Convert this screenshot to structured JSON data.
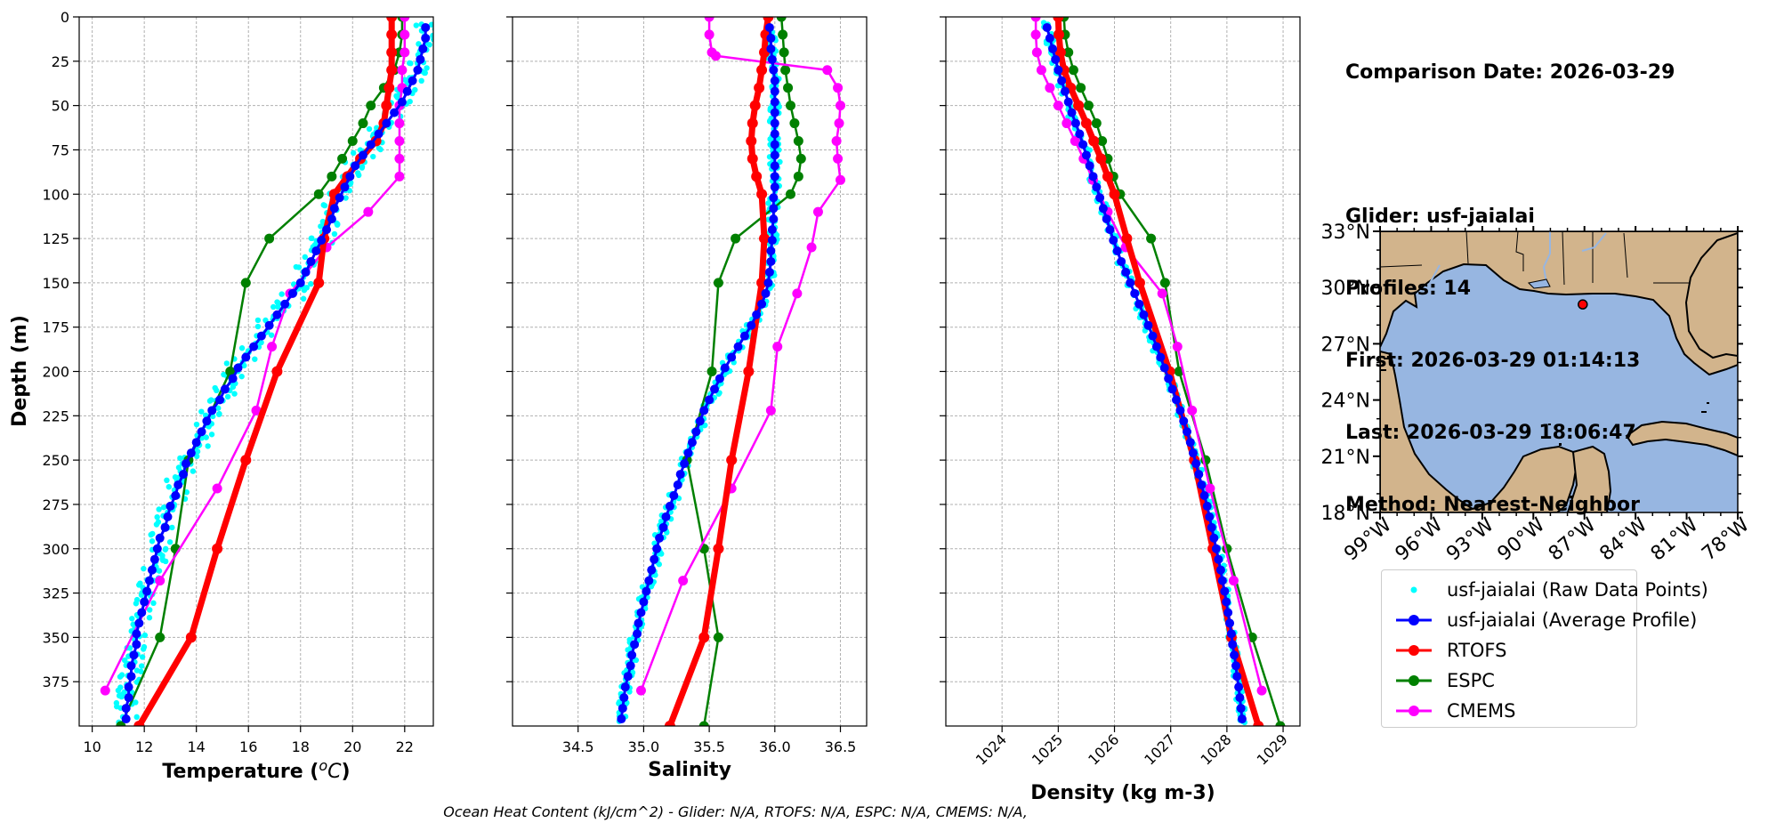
{
  "info": {
    "comparison_date": "Comparison Date: 2026-03-29",
    "glider": "Glider: usf-jaialai",
    "profiles": "Profiles: 14",
    "first": "First: 2026-03-29 01:14:13",
    "last": "Last: 2026-03-29 18:06:47",
    "method": "Method: Nearest-Neighbor"
  },
  "footer": "Ocean Heat Content (kJ/cm^2) - Glider: N/A,  RTOFS: N/A,  ESPC: N/A,  CMEMS: N/A,",
  "colors": {
    "raw": "#00ffff",
    "average": "#0000ff",
    "rtofs": "#ff0000",
    "espc": "#008000",
    "cmems": "#ff00ff",
    "ocean": "#97b6e1",
    "land": "#d2b48c",
    "grid": "#b0b0b0"
  },
  "legend": [
    {
      "label": "usf-jaialai (Raw Data Points)",
      "color": "#00ffff",
      "style": "points"
    },
    {
      "label": "usf-jaialai (Average Profile)",
      "color": "#0000ff",
      "style": "line-marker"
    },
    {
      "label": "RTOFS",
      "color": "#ff0000",
      "style": "line-marker"
    },
    {
      "label": "ESPC",
      "color": "#008000",
      "style": "line-marker"
    },
    {
      "label": "CMEMS",
      "color": "#ff00ff",
      "style": "line-marker"
    }
  ],
  "chart_data": [
    {
      "type": "line",
      "xlabel": "Temperature (",
      "xlabel_unit": "oC",
      "ylabel": "Depth (m)",
      "xlim": [
        9.5,
        23.1
      ],
      "ylim": [
        400,
        0
      ],
      "xticks": [
        10,
        12,
        14,
        16,
        18,
        20,
        22
      ],
      "yticks": [
        0,
        25,
        50,
        75,
        100,
        125,
        150,
        175,
        200,
        225,
        250,
        275,
        300,
        325,
        350,
        375
      ],
      "grid": true,
      "series": [
        {
          "name": "usf-jaialai (Average Profile)",
          "key": "average",
          "depth": [
            6,
            12,
            18,
            24,
            30,
            36,
            42,
            48,
            54,
            60,
            66,
            72,
            78,
            84,
            90,
            96,
            102,
            108,
            114,
            120,
            126,
            132,
            138,
            144,
            150,
            156,
            162,
            168,
            174,
            180,
            186,
            192,
            198,
            204,
            210,
            216,
            222,
            228,
            234,
            240,
            246,
            252,
            258,
            264,
            270,
            276,
            282,
            288,
            294,
            300,
            306,
            312,
            318,
            324,
            330,
            336,
            342,
            348,
            354,
            360,
            366,
            372,
            378,
            384,
            390,
            396
          ],
          "x": [
            22.8,
            22.8,
            22.7,
            22.6,
            22.5,
            22.3,
            22.1,
            21.9,
            21.6,
            21.3,
            21.0,
            20.7,
            20.4,
            20.1,
            19.9,
            19.7,
            19.5,
            19.3,
            19.2,
            19.0,
            18.8,
            18.6,
            18.4,
            18.2,
            18.0,
            17.7,
            17.4,
            17.1,
            16.8,
            16.5,
            16.2,
            15.9,
            15.6,
            15.4,
            15.1,
            14.9,
            14.6,
            14.4,
            14.2,
            14.0,
            13.8,
            13.6,
            13.5,
            13.3,
            13.2,
            13.0,
            12.9,
            12.8,
            12.6,
            12.5,
            12.4,
            12.3,
            12.2,
            12.1,
            12.0,
            11.9,
            11.8,
            11.7,
            11.7,
            11.6,
            11.5,
            11.5,
            11.4,
            11.4,
            11.3,
            11.3
          ]
        },
        {
          "name": "RTOFS",
          "key": "rtofs",
          "depth": [
            0,
            10,
            20,
            30,
            40,
            50,
            60,
            70,
            80,
            90,
            100,
            125,
            150,
            200,
            250,
            300,
            350,
            400
          ],
          "x": [
            21.5,
            21.5,
            21.5,
            21.5,
            21.4,
            21.3,
            21.2,
            20.9,
            20.3,
            19.8,
            19.3,
            18.9,
            18.7,
            17.1,
            15.9,
            14.8,
            13.8,
            11.8
          ]
        },
        {
          "name": "ESPC",
          "key": "espc",
          "depth": [
            0,
            10,
            20,
            30,
            40,
            50,
            60,
            70,
            80,
            90,
            100,
            125,
            150,
            200,
            250,
            300,
            350,
            400
          ],
          "x": [
            21.9,
            21.9,
            21.8,
            21.6,
            21.2,
            20.7,
            20.4,
            20.0,
            19.6,
            19.2,
            18.7,
            16.8,
            15.9,
            15.3,
            13.7,
            13.2,
            12.6,
            11.1
          ]
        },
        {
          "name": "CMEMS",
          "key": "cmems",
          "depth": [
            0,
            10,
            20,
            30,
            40,
            50,
            60,
            70,
            80,
            90,
            110,
            130,
            156,
            186,
            222,
            266,
            318,
            380
          ],
          "x": [
            22.0,
            22.0,
            22.0,
            21.9,
            21.9,
            21.8,
            21.8,
            21.8,
            21.8,
            21.8,
            20.6,
            19.0,
            17.6,
            16.9,
            16.3,
            14.8,
            12.6,
            10.5
          ]
        }
      ]
    },
    {
      "type": "line",
      "xlabel": "Salinity",
      "xlim": [
        34.0,
        36.7
      ],
      "ylim": [
        400,
        0
      ],
      "xticks": [
        34.5,
        35.0,
        35.5,
        36.0,
        36.5
      ],
      "grid": true,
      "series": [
        {
          "name": "usf-jaialai (Average Profile)",
          "key": "average",
          "depth": [
            6,
            12,
            18,
            24,
            30,
            36,
            42,
            48,
            54,
            60,
            66,
            72,
            78,
            84,
            90,
            96,
            102,
            108,
            114,
            120,
            126,
            132,
            138,
            144,
            150,
            156,
            162,
            168,
            174,
            180,
            186,
            192,
            198,
            204,
            210,
            216,
            222,
            228,
            234,
            240,
            246,
            252,
            258,
            264,
            270,
            276,
            282,
            288,
            294,
            300,
            306,
            312,
            318,
            324,
            330,
            336,
            342,
            348,
            354,
            360,
            366,
            372,
            378,
            384,
            390,
            396
          ],
          "x": [
            35.96,
            35.97,
            35.97,
            35.98,
            35.99,
            36.0,
            36.0,
            36.0,
            36.0,
            36.0,
            36.0,
            36.0,
            36.0,
            36.0,
            36.0,
            36.0,
            35.99,
            35.99,
            35.99,
            35.98,
            35.98,
            35.97,
            35.97,
            35.96,
            35.95,
            35.93,
            35.9,
            35.86,
            35.82,
            35.77,
            35.72,
            35.67,
            35.62,
            35.58,
            35.54,
            35.5,
            35.46,
            35.43,
            35.4,
            35.37,
            35.34,
            35.31,
            35.28,
            35.26,
            35.23,
            35.2,
            35.17,
            35.15,
            35.12,
            35.1,
            35.08,
            35.06,
            35.04,
            35.02,
            35.0,
            34.98,
            34.96,
            34.95,
            34.93,
            34.91,
            34.9,
            34.88,
            34.86,
            34.85,
            34.84,
            34.83
          ]
        },
        {
          "name": "RTOFS",
          "key": "rtofs",
          "depth": [
            0,
            10,
            20,
            30,
            40,
            50,
            60,
            70,
            80,
            90,
            100,
            125,
            150,
            200,
            250,
            300,
            350,
            400
          ],
          "x": [
            35.95,
            35.93,
            35.92,
            35.9,
            35.88,
            35.85,
            35.83,
            35.82,
            35.83,
            35.86,
            35.9,
            35.92,
            35.9,
            35.8,
            35.67,
            35.57,
            35.46,
            35.2
          ]
        },
        {
          "name": "ESPC",
          "key": "espc",
          "depth": [
            0,
            10,
            20,
            30,
            40,
            50,
            60,
            70,
            80,
            90,
            100,
            125,
            150,
            200,
            250,
            300,
            350,
            400
          ],
          "x": [
            36.05,
            36.06,
            36.07,
            36.08,
            36.1,
            36.12,
            36.15,
            36.18,
            36.2,
            36.18,
            36.12,
            35.7,
            35.57,
            35.52,
            35.33,
            35.46,
            35.57,
            35.46
          ]
        },
        {
          "name": "CMEMS",
          "key": "cmems",
          "depth": [
            0,
            10,
            20,
            22,
            30,
            40,
            50,
            60,
            70,
            80,
            92,
            110,
            130,
            156,
            186,
            222,
            266,
            318,
            380
          ],
          "x": [
            35.5,
            35.5,
            35.52,
            35.55,
            36.4,
            36.48,
            36.5,
            36.49,
            36.47,
            36.48,
            36.5,
            36.33,
            36.28,
            36.17,
            36.02,
            35.97,
            35.67,
            35.3,
            34.98
          ]
        }
      ]
    },
    {
      "type": "line",
      "xlabel": "Density (kg m-3)",
      "xlim": [
        1023.0,
        1029.3
      ],
      "ylim": [
        400,
        0
      ],
      "xticks": [
        1024,
        1025,
        1026,
        1027,
        1028,
        1029
      ],
      "grid": true,
      "series": [
        {
          "name": "usf-jaialai (Average Profile)",
          "key": "average",
          "depth": [
            6,
            12,
            18,
            24,
            30,
            36,
            42,
            48,
            54,
            60,
            66,
            72,
            78,
            84,
            90,
            96,
            102,
            108,
            114,
            120,
            126,
            132,
            138,
            144,
            150,
            156,
            162,
            168,
            174,
            180,
            186,
            192,
            198,
            204,
            210,
            216,
            222,
            228,
            234,
            240,
            246,
            252,
            258,
            264,
            270,
            276,
            282,
            288,
            294,
            300,
            306,
            312,
            318,
            324,
            330,
            336,
            342,
            348,
            354,
            360,
            366,
            372,
            378,
            384,
            390,
            396
          ],
          "x": [
            1024.8,
            1024.85,
            1024.9,
            1024.95,
            1025.0,
            1025.06,
            1025.12,
            1025.18,
            1025.24,
            1025.31,
            1025.38,
            1025.44,
            1025.5,
            1025.56,
            1025.62,
            1025.68,
            1025.74,
            1025.8,
            1025.86,
            1025.92,
            1025.98,
            1026.05,
            1026.12,
            1026.2,
            1026.28,
            1026.36,
            1026.44,
            1026.52,
            1026.6,
            1026.68,
            1026.75,
            1026.82,
            1026.89,
            1026.96,
            1027.03,
            1027.1,
            1027.17,
            1027.23,
            1027.29,
            1027.35,
            1027.4,
            1027.45,
            1027.5,
            1027.55,
            1027.6,
            1027.65,
            1027.69,
            1027.73,
            1027.77,
            1027.81,
            1027.85,
            1027.89,
            1027.92,
            1027.96,
            1027.99,
            1028.02,
            1028.05,
            1028.08,
            1028.1,
            1028.13,
            1028.16,
            1028.18,
            1028.21,
            1028.23,
            1028.25,
            1028.27
          ]
        },
        {
          "name": "RTOFS",
          "key": "rtofs",
          "depth": [
            0,
            10,
            20,
            30,
            40,
            50,
            60,
            70,
            80,
            90,
            100,
            125,
            150,
            200,
            250,
            300,
            350,
            400
          ],
          "x": [
            1025.0,
            1025.01,
            1025.04,
            1025.1,
            1025.22,
            1025.36,
            1025.5,
            1025.63,
            1025.76,
            1025.88,
            1026.0,
            1026.22,
            1026.45,
            1026.98,
            1027.42,
            1027.75,
            1028.08,
            1028.56
          ]
        },
        {
          "name": "ESPC",
          "key": "espc",
          "depth": [
            0,
            10,
            20,
            30,
            40,
            50,
            60,
            70,
            80,
            90,
            100,
            125,
            150,
            200,
            250,
            300,
            350,
            400
          ],
          "x": [
            1025.1,
            1025.12,
            1025.18,
            1025.27,
            1025.4,
            1025.54,
            1025.68,
            1025.78,
            1025.88,
            1025.98,
            1026.1,
            1026.65,
            1026.9,
            1027.15,
            1027.62,
            1028.0,
            1028.45,
            1028.95
          ]
        },
        {
          "name": "CMEMS",
          "key": "cmems",
          "depth": [
            0,
            10,
            20,
            30,
            40,
            50,
            60,
            70,
            80,
            92,
            110,
            130,
            156,
            186,
            222,
            266,
            318,
            380
          ],
          "x": [
            1024.6,
            1024.6,
            1024.62,
            1024.7,
            1024.85,
            1025.0,
            1025.15,
            1025.3,
            1025.45,
            1025.62,
            1025.88,
            1026.2,
            1026.85,
            1027.12,
            1027.38,
            1027.7,
            1028.12,
            1028.62
          ]
        }
      ]
    },
    {
      "type": "map",
      "lat_labels": [
        "33°N",
        "30°N",
        "27°N",
        "24°N",
        "21°N",
        "18°N"
      ],
      "lon_labels": [
        "99°W",
        "96°W",
        "93°W",
        "90°W",
        "87°W",
        "84°W",
        "81°W",
        "78°W"
      ],
      "lat_range": [
        18,
        33
      ],
      "lon_range": [
        -99,
        -78
      ],
      "glider_position": {
        "lat": 29.1,
        "lon": -87.1
      }
    }
  ]
}
